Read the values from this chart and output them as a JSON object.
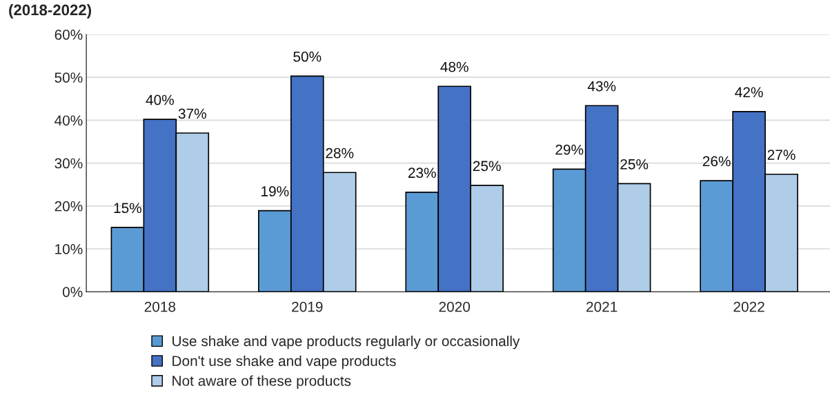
{
  "chart_data": {
    "type": "bar",
    "title": "(2018-2022)",
    "categories": [
      "2018",
      "2019",
      "2020",
      "2021",
      "2022"
    ],
    "series": [
      {
        "name": "Use shake and vape products regularly or occasionally",
        "color": "#5b9bd5",
        "values": [
          15,
          18.9,
          23.2,
          28.6,
          25.9
        ],
        "value_labels": [
          "15%",
          "19%",
          "23%",
          "29%",
          "26%"
        ]
      },
      {
        "name": "Don't use shake and vape products",
        "color": "#4472c4",
        "values": [
          40.2,
          50.3,
          47.9,
          43.4,
          42
        ],
        "value_labels": [
          "40%",
          "50%",
          "48%",
          "43%",
          "42%"
        ]
      },
      {
        "name": "Not aware of these products",
        "color": "#afcce9",
        "values": [
          37,
          27.8,
          24.8,
          25.2,
          27.4
        ],
        "value_labels": [
          "37%",
          "28%",
          "25%",
          "25%",
          "27%"
        ]
      }
    ],
    "ylim": [
      0,
      60
    ],
    "yticks": [
      {
        "value": 0,
        "label": "0%"
      },
      {
        "value": 10,
        "label": "10%"
      },
      {
        "value": 20,
        "label": "20%"
      },
      {
        "value": 30,
        "label": "30%"
      },
      {
        "value": 40,
        "label": "40%"
      },
      {
        "value": 50,
        "label": "50%"
      },
      {
        "value": 60,
        "label": "60%"
      }
    ],
    "grid": "y",
    "legend": "bottom"
  }
}
